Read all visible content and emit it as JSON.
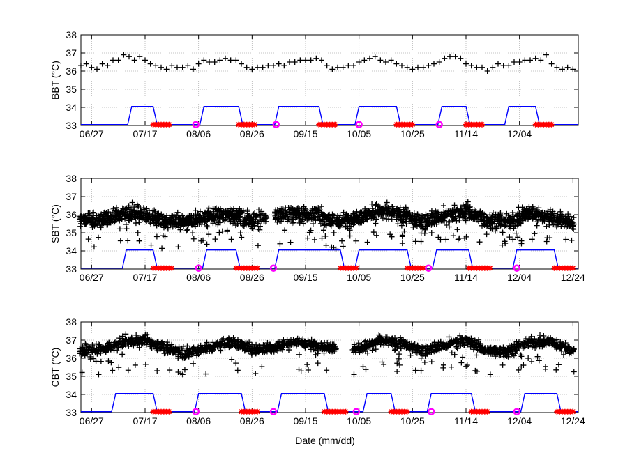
{
  "figure": {
    "xlabel": "Date (mm/dd)"
  },
  "chart_data": [
    {
      "type": "scatter",
      "ylabel": "BBT (°C)",
      "xlim": [
        "06/23",
        "12/26"
      ],
      "ylim": [
        33,
        38
      ],
      "yticks": [
        "33",
        "34",
        "35",
        "36",
        "37",
        "38"
      ],
      "xticks": [
        "06/27",
        "07/17",
        "08/06",
        "08/26",
        "09/15",
        "10/05",
        "10/25",
        "11/14",
        "12/04"
      ],
      "grid": true,
      "colors": {
        "temperature": "#000000",
        "cycle": "#0000ff",
        "menstruation": "#ff0000",
        "ovulation": "#ff00ff"
      },
      "temperature": [
        [
          "06/23",
          36.3
        ],
        [
          "06/25",
          36.4
        ],
        [
          "06/27",
          36.2
        ],
        [
          "06/29",
          36.1
        ],
        [
          "07/01",
          36.4
        ],
        [
          "07/03",
          36.3
        ],
        [
          "07/05",
          36.6
        ],
        [
          "07/07",
          36.6
        ],
        [
          "07/09",
          36.9
        ],
        [
          "07/11",
          36.8
        ],
        [
          "07/13",
          36.6
        ],
        [
          "07/15",
          36.8
        ],
        [
          "07/17",
          36.6
        ],
        [
          "07/19",
          36.4
        ],
        [
          "07/21",
          36.3
        ],
        [
          "07/23",
          36.2
        ],
        [
          "07/25",
          36.1
        ],
        [
          "07/27",
          36.3
        ],
        [
          "07/29",
          36.2
        ],
        [
          "07/31",
          36.2
        ],
        [
          "08/02",
          36.3
        ],
        [
          "08/04",
          36.1
        ],
        [
          "08/06",
          36.4
        ],
        [
          "08/08",
          36.6
        ],
        [
          "08/10",
          36.5
        ],
        [
          "08/12",
          36.5
        ],
        [
          "08/14",
          36.6
        ],
        [
          "08/16",
          36.7
        ],
        [
          "08/18",
          36.6
        ],
        [
          "08/20",
          36.6
        ],
        [
          "08/22",
          36.4
        ],
        [
          "08/24",
          36.2
        ],
        [
          "08/26",
          36.1
        ],
        [
          "08/28",
          36.2
        ],
        [
          "08/30",
          36.2
        ],
        [
          "09/01",
          36.3
        ],
        [
          "09/03",
          36.3
        ],
        [
          "09/05",
          36.4
        ],
        [
          "09/07",
          36.3
        ],
        [
          "09/09",
          36.5
        ],
        [
          "09/11",
          36.5
        ],
        [
          "09/13",
          36.6
        ],
        [
          "09/15",
          36.6
        ],
        [
          "09/17",
          36.6
        ],
        [
          "09/19",
          36.7
        ],
        [
          "09/21",
          36.6
        ],
        [
          "09/23",
          36.3
        ],
        [
          "09/25",
          36.1
        ],
        [
          "09/27",
          36.2
        ],
        [
          "09/29",
          36.2
        ],
        [
          "10/01",
          36.3
        ],
        [
          "10/03",
          36.3
        ],
        [
          "10/05",
          36.5
        ],
        [
          "10/07",
          36.6
        ],
        [
          "10/09",
          36.7
        ],
        [
          "10/11",
          36.8
        ],
        [
          "10/13",
          36.6
        ],
        [
          "10/15",
          36.5
        ],
        [
          "10/17",
          36.6
        ],
        [
          "10/19",
          36.4
        ],
        [
          "10/21",
          36.3
        ],
        [
          "10/23",
          36.2
        ],
        [
          "10/25",
          36.1
        ],
        [
          "10/27",
          36.2
        ],
        [
          "10/29",
          36.2
        ],
        [
          "10/31",
          36.3
        ],
        [
          "11/02",
          36.4
        ],
        [
          "11/04",
          36.5
        ],
        [
          "11/06",
          36.7
        ],
        [
          "11/08",
          36.8
        ],
        [
          "11/10",
          36.8
        ],
        [
          "11/12",
          36.7
        ],
        [
          "11/14",
          36.4
        ],
        [
          "11/16",
          36.3
        ],
        [
          "11/18",
          36.2
        ],
        [
          "11/20",
          36.2
        ],
        [
          "11/22",
          36.0
        ],
        [
          "11/24",
          36.2
        ],
        [
          "11/26",
          36.4
        ],
        [
          "11/28",
          36.3
        ],
        [
          "11/30",
          36.3
        ],
        [
          "12/02",
          36.5
        ],
        [
          "12/04",
          36.5
        ],
        [
          "12/06",
          36.6
        ],
        [
          "12/08",
          36.6
        ],
        [
          "12/10",
          36.7
        ],
        [
          "12/12",
          36.6
        ],
        [
          "12/14",
          36.9
        ],
        [
          "12/16",
          36.4
        ],
        [
          "12/18",
          36.2
        ],
        [
          "12/20",
          36.1
        ],
        [
          "12/22",
          36.2
        ],
        [
          "12/24",
          36.1
        ]
      ],
      "cycle_high": [
        [
          "07/12",
          "07/20"
        ],
        [
          "08/08",
          "08/21"
        ],
        [
          "09/05",
          "09/20"
        ],
        [
          "10/05",
          "10/19"
        ],
        [
          "11/05",
          "11/14"
        ],
        [
          "11/30",
          "12/10"
        ]
      ],
      "menstruation": [
        [
          "07/20",
          "07/26"
        ],
        [
          "08/21",
          "08/27"
        ],
        [
          "09/20",
          "09/26"
        ],
        [
          "10/19",
          "10/25"
        ],
        [
          "11/14",
          "11/20"
        ],
        [
          "12/10",
          "12/16"
        ]
      ],
      "ovulation": [
        "08/05",
        "09/04",
        "10/05",
        "11/04"
      ]
    },
    {
      "type": "scatter",
      "ylabel": "SBT (°C)",
      "xlim": [
        "06/23",
        "12/26"
      ],
      "ylim": [
        33,
        38
      ],
      "yticks": [
        "33",
        "34",
        "35",
        "36",
        "37",
        "38"
      ],
      "xticks": [
        "06/27",
        "07/17",
        "08/06",
        "08/26",
        "09/15",
        "10/05",
        "10/25",
        "11/14",
        "12/04",
        "12/24"
      ],
      "grid": true,
      "colors": {
        "temperature": "#000000",
        "cycle": "#0000ff",
        "menstruation": "#ff0000",
        "ovulation": "#ff00ff"
      },
      "gaps": [
        [
          "09/01",
          "09/03"
        ]
      ],
      "temperature_trend": [
        [
          "06/23",
          35.7
        ],
        [
          "07/01",
          35.7
        ],
        [
          "07/09",
          36.1
        ],
        [
          "07/17",
          36.0
        ],
        [
          "07/25",
          35.6
        ],
        [
          "08/02",
          35.6
        ],
        [
          "08/10",
          35.9
        ],
        [
          "08/18",
          36.0
        ],
        [
          "08/26",
          35.7
        ],
        [
          "09/03",
          35.9
        ],
        [
          "09/11",
          36.1
        ],
        [
          "09/19",
          36.0
        ],
        [
          "09/27",
          35.6
        ],
        [
          "10/05",
          35.9
        ],
        [
          "10/13",
          36.2
        ],
        [
          "10/21",
          36.0
        ],
        [
          "10/29",
          35.6
        ],
        [
          "11/06",
          35.9
        ],
        [
          "11/14",
          36.2
        ],
        [
          "11/22",
          35.7
        ],
        [
          "11/30",
          35.6
        ],
        [
          "12/08",
          36.1
        ],
        [
          "12/16",
          35.8
        ],
        [
          "12/24",
          35.6
        ]
      ],
      "temperature_range": [
        34.0,
        36.9
      ],
      "cycle_high": [
        [
          "07/10",
          "07/20"
        ],
        [
          "08/09",
          "08/20"
        ],
        [
          "09/05",
          "09/28"
        ],
        [
          "10/05",
          "10/23"
        ],
        [
          "11/03",
          "11/15"
        ],
        [
          "12/03",
          "12/17"
        ]
      ],
      "menstruation": [
        [
          "07/20",
          "07/27"
        ],
        [
          "08/20",
          "08/28"
        ],
        [
          "09/28",
          "10/04"
        ],
        [
          "10/23",
          "10/29"
        ],
        [
          "11/15",
          "11/23"
        ],
        [
          "12/17",
          "12/24"
        ]
      ],
      "ovulation": [
        "08/06",
        "09/03",
        "10/31",
        "12/03"
      ]
    },
    {
      "type": "scatter",
      "ylabel": "CBT (°C)",
      "xlim": [
        "06/23",
        "12/26"
      ],
      "ylim": [
        33,
        38
      ],
      "yticks": [
        "33",
        "34",
        "35",
        "36",
        "37",
        "38"
      ],
      "xticks": [
        "06/27",
        "07/17",
        "08/06",
        "08/26",
        "09/15",
        "10/05",
        "10/25",
        "11/14",
        "12/04",
        "12/24"
      ],
      "grid": true,
      "colors": {
        "temperature": "#000000",
        "cycle": "#0000ff",
        "menstruation": "#ff0000",
        "ovulation": "#ff00ff"
      },
      "gaps": [
        [
          "09/27",
          "10/02"
        ]
      ],
      "temperature_trend": [
        [
          "06/23",
          36.4
        ],
        [
          "07/01",
          36.5
        ],
        [
          "07/09",
          36.9
        ],
        [
          "07/17",
          37.0
        ],
        [
          "07/25",
          36.5
        ],
        [
          "08/02",
          36.3
        ],
        [
          "08/10",
          36.6
        ],
        [
          "08/18",
          36.9
        ],
        [
          "08/26",
          36.5
        ],
        [
          "09/03",
          36.6
        ],
        [
          "09/11",
          36.9
        ],
        [
          "09/19",
          36.7
        ],
        [
          "10/05",
          36.5
        ],
        [
          "10/13",
          37.0
        ],
        [
          "10/21",
          36.8
        ],
        [
          "10/29",
          36.4
        ],
        [
          "11/06",
          36.7
        ],
        [
          "11/14",
          37.0
        ],
        [
          "11/22",
          36.4
        ],
        [
          "11/30",
          36.4
        ],
        [
          "12/08",
          36.9
        ],
        [
          "12/16",
          36.9
        ],
        [
          "12/24",
          36.4
        ]
      ],
      "temperature_range": [
        35.1,
        37.7
      ],
      "cycle_high": [
        [
          "07/06",
          "07/20"
        ],
        [
          "08/06",
          "08/22"
        ],
        [
          "09/06",
          "09/22"
        ],
        [
          "10/08",
          "10/17"
        ],
        [
          "11/01",
          "11/16"
        ],
        [
          "12/06",
          "12/18"
        ]
      ],
      "menstruation": [
        [
          "07/20",
          "07/26"
        ],
        [
          "08/22",
          "08/28"
        ],
        [
          "09/22",
          "09/30"
        ],
        [
          "10/17",
          "10/23"
        ],
        [
          "11/16",
          "11/22"
        ],
        [
          "12/18",
          "12/24"
        ]
      ],
      "ovulation": [
        "08/05",
        "09/03",
        "10/04",
        "11/01",
        "12/03"
      ]
    }
  ]
}
